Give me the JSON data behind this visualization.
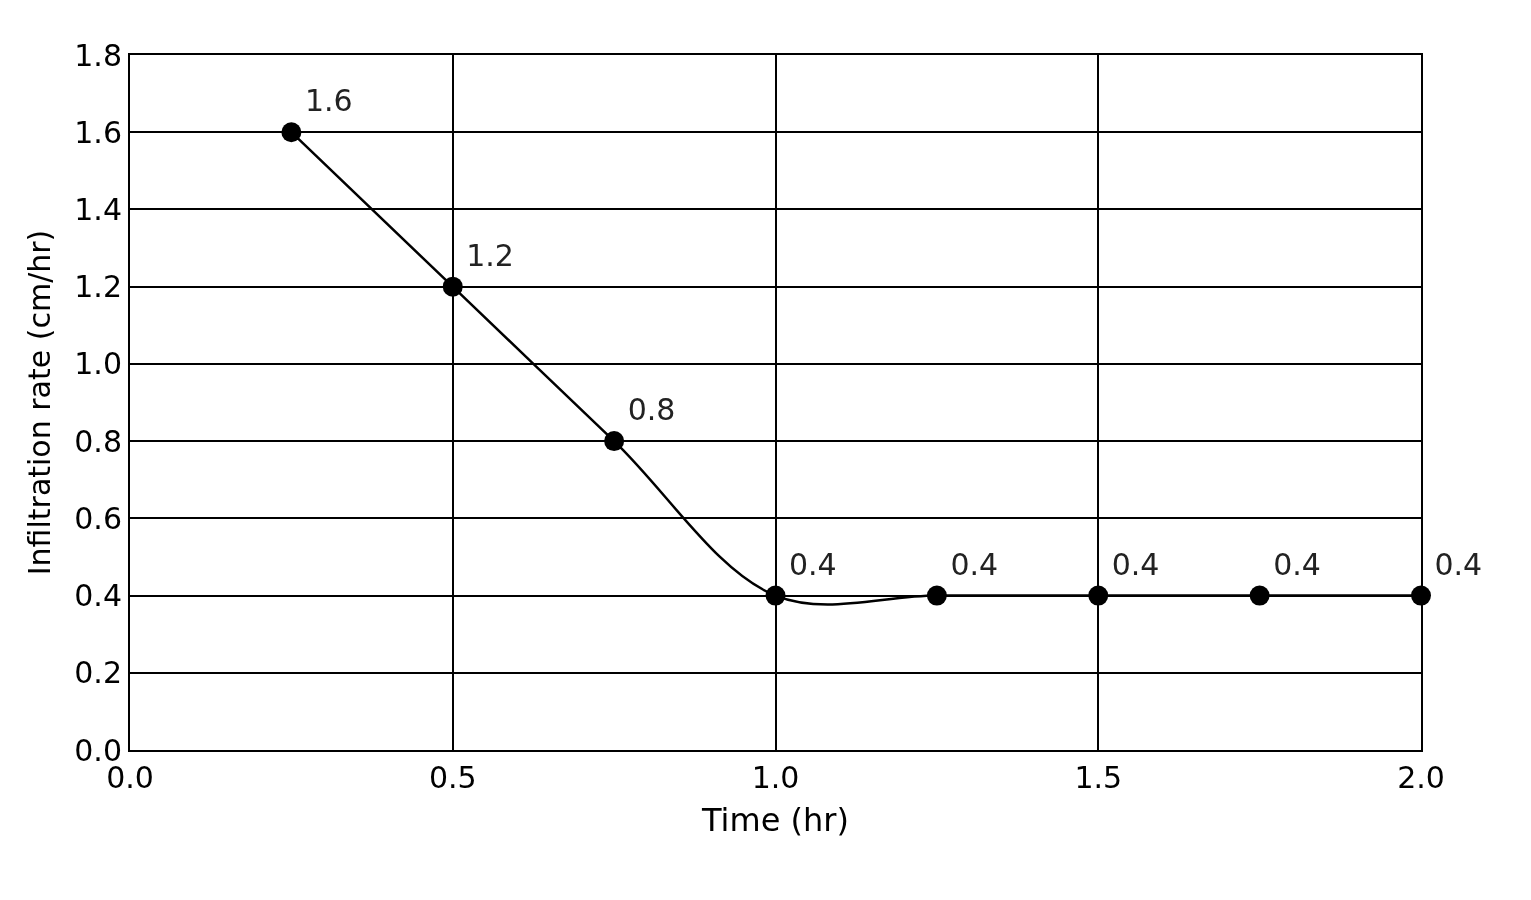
{
  "chart_data": {
    "type": "line",
    "xlabel": "Time (hr)",
    "ylabel": "Infiltration rate (cm/hr)",
    "x": [
      0.25,
      0.5,
      0.75,
      1.0,
      1.25,
      1.5,
      1.75,
      2.0
    ],
    "series": [
      {
        "color": "#000000",
        "values": [
          1.6,
          1.2,
          0.8,
          0.4,
          0.4,
          0.4,
          0.4,
          0.4
        ]
      }
    ],
    "xlim": [
      0,
      2
    ],
    "ylim": [
      0,
      1.8
    ],
    "xticks": [
      {
        "value": 0,
        "label": "0.0"
      },
      {
        "value": 0.5,
        "label": "0.5"
      },
      {
        "value": 1,
        "label": "1.0"
      },
      {
        "value": 1.5,
        "label": "1.5"
      },
      {
        "value": 2,
        "label": "2.0"
      }
    ],
    "yticks": [
      {
        "value": 0,
        "label": "0.0"
      },
      {
        "value": 0.2,
        "label": "0.2"
      },
      {
        "value": 0.4,
        "label": "0.4"
      },
      {
        "value": 0.6,
        "label": "0.6"
      },
      {
        "value": 0.8,
        "label": "0.8"
      },
      {
        "value": 1,
        "label": "1.0"
      },
      {
        "value": 1.2,
        "label": "1.2"
      },
      {
        "value": 1.4,
        "label": "1.4"
      },
      {
        "value": 1.6,
        "label": "1.6"
      },
      {
        "value": 1.8,
        "label": "1.8"
      }
    ],
    "grid": true,
    "marker": "circle",
    "line_style": "solid",
    "data_labels": true,
    "legend": false
  }
}
